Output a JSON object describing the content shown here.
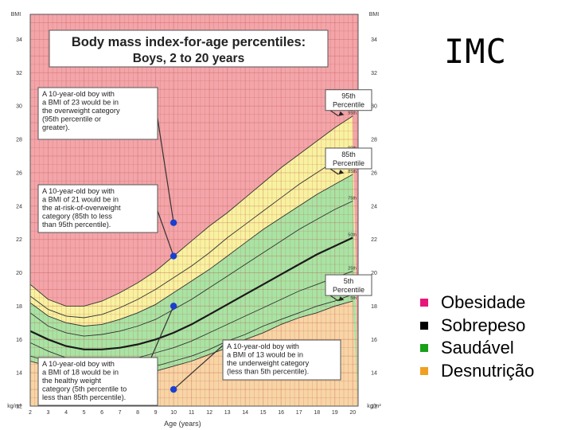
{
  "slide": {
    "title": "IMC"
  },
  "legend": [
    {
      "label": "Obesidade",
      "color": "#e8167a"
    },
    {
      "label": "Sobrepeso",
      "color": "#000000"
    },
    {
      "label": "Saudável",
      "color": "#18a018"
    },
    {
      "label": "Desnutrição",
      "color": "#f0a020"
    }
  ],
  "chart_data": {
    "type": "line",
    "title": "Body mass index-for-age percentiles:",
    "subtitle": "Boys, 2 to 20 years",
    "xlabel": "Age (years)",
    "ylabel_top": "BMI",
    "ylabel_bottom": "kg/m²",
    "xlim": [
      2,
      20.3
    ],
    "ylim": [
      12,
      35.5
    ],
    "x_ticks": [
      2,
      3,
      4,
      5,
      6,
      7,
      8,
      9,
      10,
      11,
      12,
      13,
      14,
      15,
      16,
      17,
      18,
      19,
      20
    ],
    "y_ticks": [
      12,
      14,
      16,
      18,
      20,
      22,
      24,
      26,
      28,
      30,
      32,
      34
    ],
    "grid": true,
    "zones": [
      {
        "name": "overweight",
        "color": "#f3a5a9",
        "from": "95th",
        "to": "top"
      },
      {
        "name": "at-risk",
        "color": "#f8f2a0",
        "from": "85th",
        "to": "95th"
      },
      {
        "name": "healthy",
        "color": "#a8e4a4",
        "from": "5th",
        "to": "85th"
      },
      {
        "name": "underweight",
        "color": "#f8d5a5",
        "from": "bottom",
        "to": "5th"
      }
    ],
    "x": [
      2,
      3,
      4,
      5,
      6,
      7,
      8,
      9,
      10,
      11,
      12,
      13,
      14,
      15,
      16,
      17,
      18,
      19,
      20
    ],
    "series": [
      {
        "name": "5th",
        "values": [
          14.7,
          14.4,
          14.0,
          13.8,
          13.8,
          13.8,
          13.9,
          14.1,
          14.4,
          14.7,
          15.1,
          15.5,
          16.0,
          16.4,
          16.9,
          17.3,
          17.6,
          18.0,
          18.3
        ]
      },
      {
        "name": "10th",
        "values": [
          15.0,
          14.7,
          14.3,
          14.1,
          14.0,
          14.1,
          14.2,
          14.4,
          14.7,
          15.0,
          15.4,
          15.9,
          16.3,
          16.8,
          17.2,
          17.6,
          18.0,
          18.3,
          18.7
        ]
      },
      {
        "name": "25th",
        "values": [
          15.8,
          15.3,
          14.9,
          14.7,
          14.7,
          14.8,
          14.9,
          15.2,
          15.5,
          15.9,
          16.4,
          16.9,
          17.4,
          17.9,
          18.4,
          18.9,
          19.3,
          19.7,
          20.1
        ]
      },
      {
        "name": "50th",
        "values": [
          16.5,
          16.0,
          15.6,
          15.4,
          15.4,
          15.5,
          15.7,
          16.0,
          16.4,
          16.9,
          17.5,
          18.1,
          18.7,
          19.3,
          19.9,
          20.5,
          21.1,
          21.6,
          22.1
        ]
      },
      {
        "name": "75th",
        "values": [
          17.6,
          16.8,
          16.4,
          16.2,
          16.3,
          16.5,
          16.8,
          17.2,
          17.8,
          18.4,
          19.1,
          19.8,
          20.5,
          21.2,
          21.9,
          22.6,
          23.2,
          23.8,
          24.3
        ]
      },
      {
        "name": "85th",
        "values": [
          18.2,
          17.4,
          17.0,
          16.8,
          16.9,
          17.2,
          17.6,
          18.1,
          18.8,
          19.5,
          20.2,
          21.0,
          21.8,
          22.6,
          23.3,
          24.0,
          24.7,
          25.3,
          25.9
        ]
      },
      {
        "name": "90th",
        "values": [
          18.6,
          17.8,
          17.4,
          17.3,
          17.5,
          17.9,
          18.4,
          19.0,
          19.7,
          20.4,
          21.2,
          22.1,
          22.9,
          23.7,
          24.5,
          25.3,
          26.0,
          26.7,
          27.3
        ]
      },
      {
        "name": "95th",
        "values": [
          19.3,
          18.4,
          18.0,
          18.0,
          18.3,
          18.8,
          19.4,
          20.1,
          21.0,
          21.9,
          22.8,
          23.6,
          24.5,
          25.4,
          26.3,
          27.1,
          27.9,
          28.7,
          29.4
        ]
      }
    ],
    "series_labels_right": [
      "95th",
      "90th",
      "85th",
      "75th",
      "50th",
      "25th",
      "10th",
      "5th"
    ],
    "points": [
      {
        "x": 10,
        "y": 23
      },
      {
        "x": 10,
        "y": 21
      },
      {
        "x": 10,
        "y": 18
      },
      {
        "x": 10,
        "y": 13
      }
    ],
    "percentile_callouts": [
      {
        "line1": "95th",
        "line2": "Percentile",
        "x": 19.2,
        "y": 29.4
      },
      {
        "line1": "85th",
        "line2": "Percentile",
        "x": 19.2,
        "y": 25.9
      },
      {
        "line1": "5th",
        "line2": "Percentile",
        "x": 19.2,
        "y": 18.3
      }
    ],
    "annotations": [
      {
        "lines": [
          "A 10-year-old boy with",
          "a BMI of 23 would be in",
          "the overweight category",
          "(95th percentile or",
          "greater)."
        ]
      },
      {
        "lines": [
          "A 10-year-old boy with",
          "a BMI of 21 would be in",
          "the at-risk-of-overweight",
          "category (85th to less",
          "than 95th percentile)."
        ]
      },
      {
        "lines": [
          "A 10-year-old boy with",
          "a BMI of 18 would be in",
          "the healthy weight",
          "category (5th percentile to",
          "less than 85th percentile)."
        ]
      },
      {
        "lines": [
          "A 10-year-old boy with",
          "a BMI of 13 would be in",
          "the underweight category",
          "(less than 5th percentile)."
        ]
      }
    ]
  }
}
